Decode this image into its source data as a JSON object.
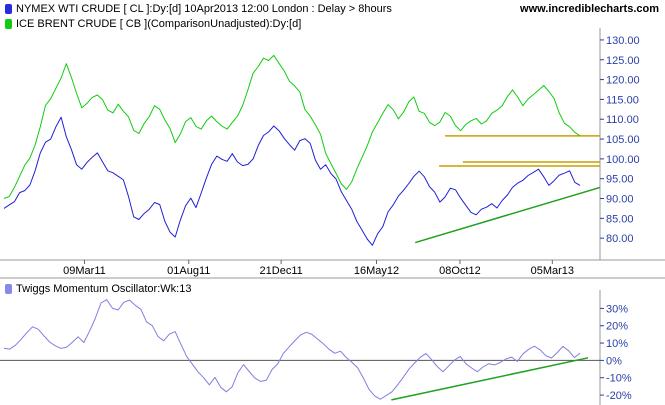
{
  "header": {
    "legend1": "NYMEX WTI CRUDE [ CL ]:Dy:[d]  10Apr2013 12:00 London : Delay > 8hours",
    "legend2": "ICE BRENT CRUDE [ CB ](ComparisonUnadjusted):Dy:[d]",
    "site": "www.incrediblecharts.com",
    "legend1_color": "#2a2adf",
    "legend2_color": "#11cc11"
  },
  "oscillator": {
    "legend": "Twiggs Momentum Oscillator:Wk:13",
    "legend_color": "#8888e8"
  },
  "chart_data": [
    {
      "type": "line",
      "title": "",
      "x_labels": [
        "09Mar11",
        "01Aug11",
        "21Dec11",
        "16May12",
        "08Oct12",
        "05Mar13"
      ],
      "ylim": [
        75,
        132
      ],
      "y_ticks": [
        80,
        85,
        90,
        95,
        100,
        105,
        110,
        115,
        120,
        125,
        130
      ],
      "y_tick_labels": [
        "80.00",
        "85.00",
        "90.00",
        "95.00",
        "100.00",
        "105.00",
        "110.00",
        "115.00",
        "120.00",
        "125.00",
        "130.00"
      ],
      "series": [
        {
          "name": "NYMEX WTI CRUDE [ CL ]",
          "color": "#2020d8",
          "values": [
            87.5,
            88.4,
            89.2,
            91.5,
            92.0,
            93.4,
            97.0,
            101.5,
            104.2,
            105.0,
            108.1,
            110.5,
            105.6,
            102.3,
            98.5,
            97.4,
            99.1,
            100.4,
            101.5,
            99.2,
            97.0,
            96.5,
            95.6,
            94.7,
            90.5,
            85.4,
            84.7,
            86.2,
            87.3,
            89.0,
            88.5,
            84.2,
            81.5,
            80.3,
            84.6,
            88.2,
            90.1,
            87.7,
            91.4,
            95.2,
            98.6,
            100.7,
            99.9,
            99.4,
            101.3,
            99.2,
            98.3,
            98.6,
            100.0,
            103.4,
            105.9,
            106.8,
            108.3,
            107.1,
            105.2,
            103.6,
            102.2,
            104.6,
            105.1,
            103.9,
            99.7,
            97.4,
            98.5,
            96.3,
            94.9,
            91.7,
            89.5,
            87.3,
            84.2,
            82.0,
            79.8,
            78.2,
            81.1,
            82.9,
            86.6,
            88.4,
            90.6,
            92.1,
            93.8,
            95.6,
            96.9,
            95.5,
            93.0,
            91.6,
            89.1,
            90.4,
            92.6,
            92.2,
            90.1,
            88.3,
            86.5,
            85.9,
            87.3,
            87.8,
            88.7,
            87.6,
            89.5,
            90.9,
            92.8,
            93.9,
            94.6,
            95.8,
            96.6,
            97.4,
            95.5,
            93.3,
            94.5,
            95.9,
            96.4,
            97.0,
            94.1,
            93.3
          ],
          "line_width": 1
        },
        {
          "name": "ICE BRENT CRUDE [ CB ]",
          "color": "#11cc11",
          "values": [
            90.0,
            90.5,
            92.8,
            95.6,
            98.4,
            100.2,
            103.5,
            108.1,
            113.5,
            115.2,
            117.8,
            120.4,
            124.0,
            120.5,
            116.5,
            112.9,
            114.0,
            115.5,
            116.1,
            114.9,
            112.3,
            111.6,
            113.8,
            112.0,
            110.6,
            107.2,
            106.4,
            108.9,
            110.7,
            113.4,
            112.5,
            109.8,
            107.6,
            104.1,
            106.3,
            109.4,
            110.4,
            108.2,
            107.5,
            109.6,
            110.8,
            109.4,
            108.3,
            107.5,
            109.2,
            110.8,
            113.5,
            117.4,
            121.6,
            123.3,
            125.4,
            124.8,
            126.1,
            124.1,
            122.2,
            119.6,
            118.4,
            116.9,
            112.4,
            110.8,
            108.6,
            106.2,
            101.4,
            98.8,
            96.3,
            93.7,
            92.3,
            94.2,
            97.5,
            100.4,
            103.3,
            106.8,
            109.1,
            111.5,
            113.7,
            112.4,
            110.1,
            111.8,
            114.4,
            115.6,
            112.0,
            111.5,
            109.2,
            108.4,
            109.3,
            111.7,
            110.8,
            108.4,
            107.1,
            108.7,
            109.6,
            110.2,
            108.8,
            109.6,
            111.5,
            112.3,
            113.4,
            115.7,
            117.4,
            115.6,
            113.4,
            115.1,
            116.2,
            117.3,
            118.5,
            117.0,
            115.2,
            111.6,
            109.0,
            108.1,
            106.7,
            105.8
          ]
        }
      ],
      "horizontal_lines": [
        {
          "y": 105.8,
          "x_start": 0.74,
          "x_end": 1.0,
          "color": "#c8a000"
        },
        {
          "y": 98.2,
          "x_start": 0.73,
          "x_end": 1.0,
          "color": "#c8a000"
        },
        {
          "y": 99.2,
          "x_start": 0.77,
          "x_end": 1.0,
          "color": "#c8a000"
        }
      ],
      "trend_lines": [
        {
          "x_from": 0.69,
          "y_from": 78.9,
          "x_to": 1.0,
          "y_to": 92.8,
          "color": "#20a020"
        }
      ],
      "grid": false,
      "axis_position": "right"
    },
    {
      "type": "line",
      "title": "",
      "ylim": [
        -24,
        36
      ],
      "y_ticks": [
        -20,
        -10,
        0,
        10,
        20,
        30
      ],
      "y_tick_labels": [
        "-20%",
        "-10%",
        "0%",
        "10%",
        "20%",
        "30%"
      ],
      "zero_line": true,
      "series": [
        {
          "name": "Twiggs Momentum Oscillator:Wk:13",
          "color": "#7f7fdf",
          "values": [
            7.0,
            6.5,
            8.7,
            12.2,
            16.0,
            19.4,
            18.0,
            14.2,
            10.6,
            8.4,
            6.9,
            7.7,
            10.5,
            13.6,
            10.3,
            16.8,
            24.2,
            33.1,
            35.0,
            30.2,
            29.1,
            33.5,
            34.8,
            31.8,
            29.5,
            22.2,
            20.0,
            13.8,
            11.3,
            15.2,
            16.6,
            9.5,
            2.4,
            -2.0,
            -6.5,
            -10.0,
            -14.1,
            -9.8,
            -15.5,
            -18.1,
            -15.3,
            -7.2,
            -2.4,
            -6.4,
            -10.2,
            -12.1,
            -11.4,
            -5.3,
            -2.0,
            4.1,
            7.8,
            11.4,
            14.7,
            16.2,
            15.0,
            12.3,
            9.6,
            6.4,
            4.1,
            5.3,
            1.7,
            -1.1,
            -4.2,
            -10.1,
            -16.7,
            -20.5,
            -22.4,
            -20.3,
            -18.2,
            -14.2,
            -9.8,
            -5.1,
            -1.5,
            1.8,
            3.9,
            0.4,
            -3.7,
            -6.5,
            -3.1,
            0.2,
            2.3,
            -1.9,
            -4.4,
            -6.5,
            -3.8,
            -1.9,
            -2.6,
            -1.2,
            0.8,
            1.9,
            -0.6,
            3.8,
            6.4,
            8.2,
            6.1,
            2.7,
            1.4,
            4.5,
            8.1,
            5.6,
            1.6,
            4.2
          ],
          "line_width": 1
        }
      ],
      "trend_lines": [
        {
          "x_from": 0.65,
          "y_from": -22.8,
          "x_to": 0.98,
          "y_to": 1.5,
          "color": "#20a020"
        }
      ],
      "grid": false,
      "axis_position": "right"
    }
  ]
}
